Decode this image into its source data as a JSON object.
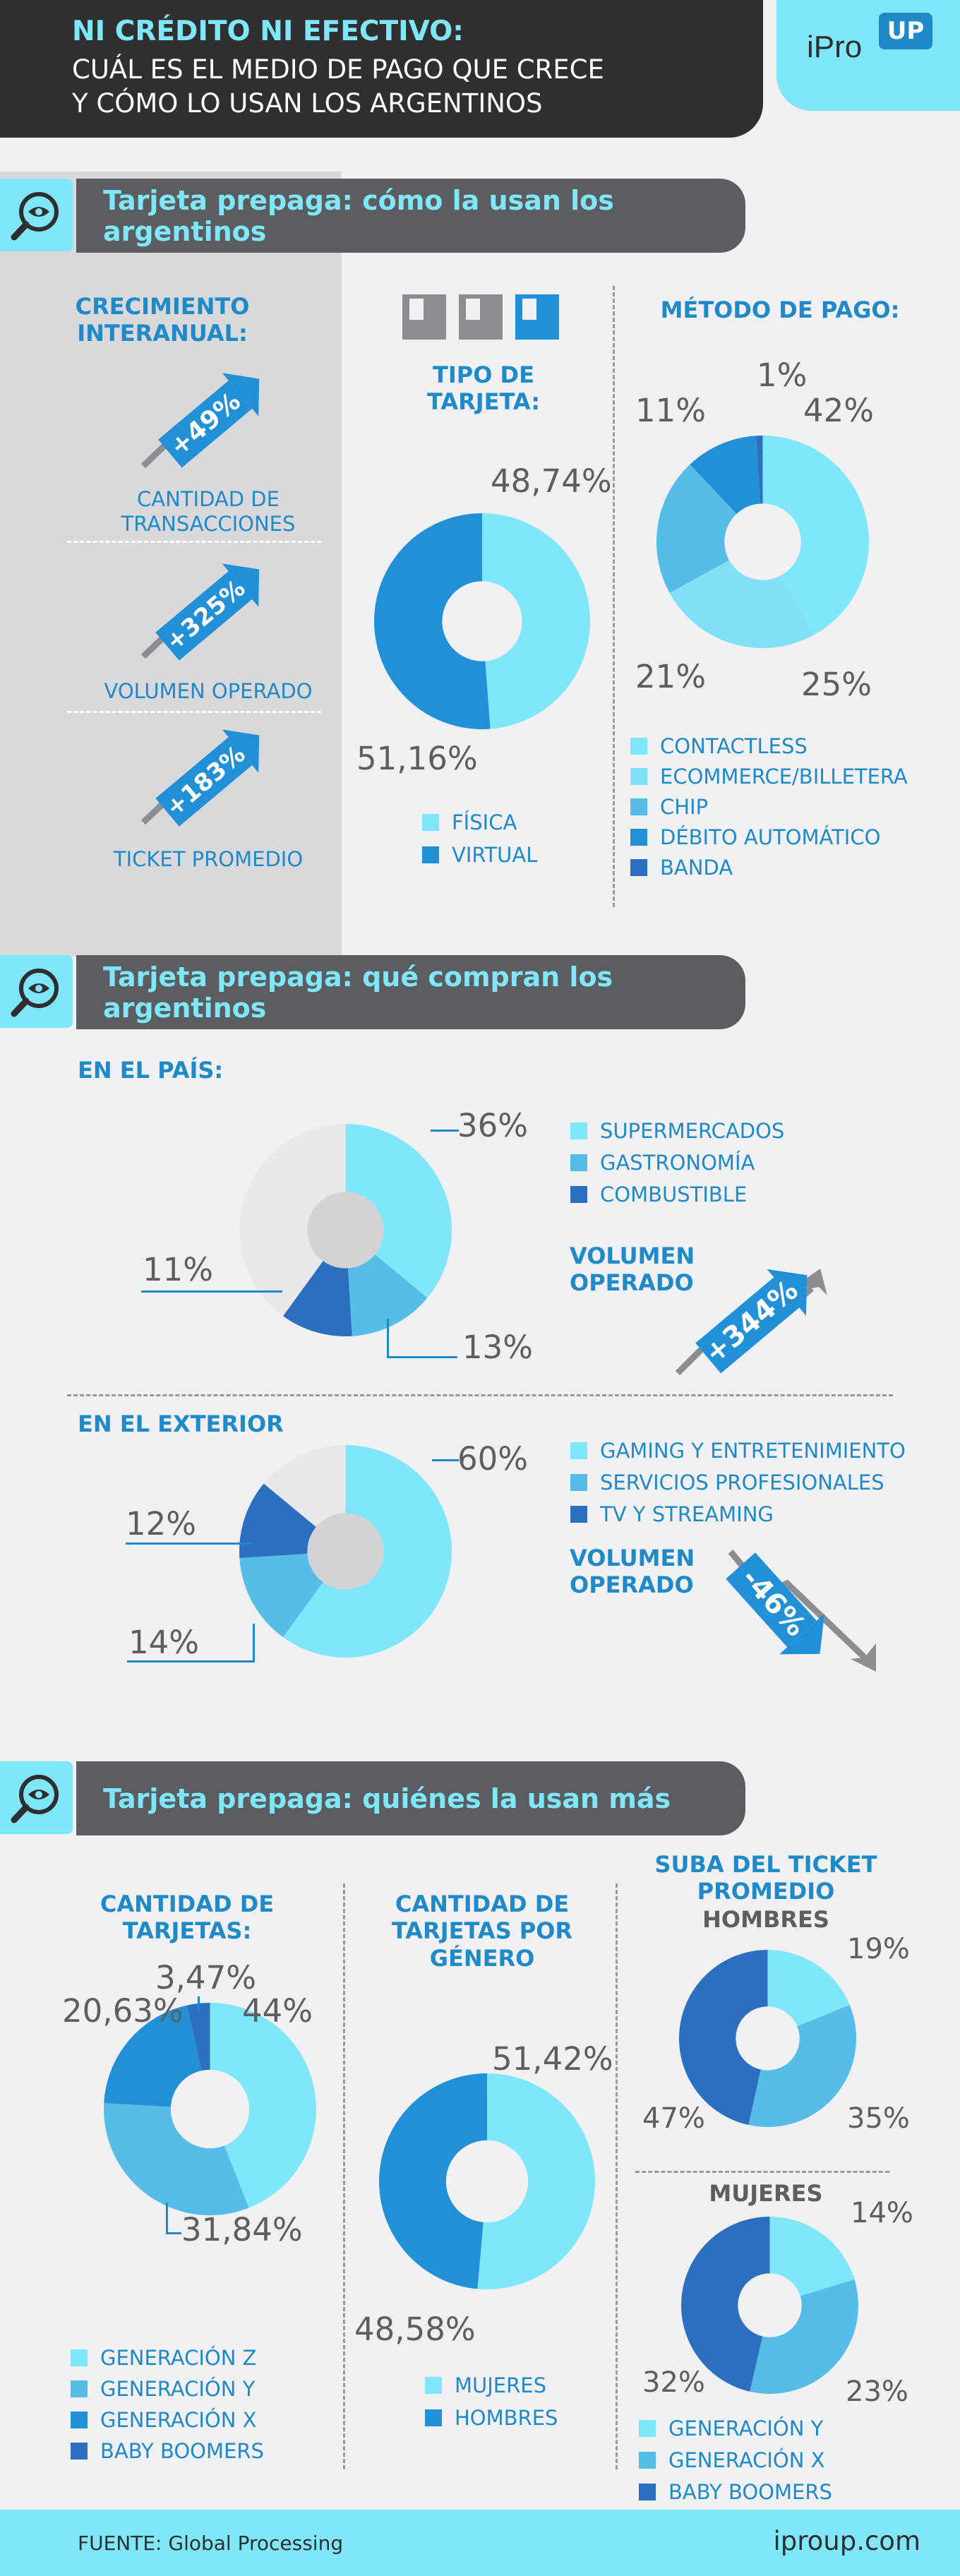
{
  "header": {
    "title_line1": "NI CRÉDITO NI EFECTIVO:",
    "title_line2": "CUÁL ES EL MEDIO DE PAGO QUE CRECE",
    "title_line3": "Y CÓMO LO USAN LOS ARGENTINOS",
    "logo_text": "iPro",
    "logo_badge": "UP"
  },
  "colors": {
    "cyan": "#7fe7f9",
    "light_blue": "#55bde8",
    "blue": "#2290d6",
    "dark_blue": "#2c6fbf",
    "dark_gray": "#2f2f30"
  },
  "sections": [
    {
      "title": "Tarjeta prepaga: cómo la usan los argentinos"
    },
    {
      "title": "Tarjeta prepaga: qué compran los argentinos"
    },
    {
      "title": "Tarjeta prepaga: quiénes la usan más"
    }
  ],
  "growth": {
    "heading": "CRECIMIENTO INTERANUAL:",
    "items": [
      {
        "value": "+49%",
        "label": "CANTIDAD DE TRANSACCIONES"
      },
      {
        "value": "+325%",
        "label": "VOLUMEN OPERADO"
      },
      {
        "value": "+183%",
        "label": "TICKET PROMEDIO"
      }
    ]
  },
  "texts": {
    "en_pais": "EN EL PAÍS:",
    "en_exterior": "EN EL EXTERIOR",
    "volumen_operado": "VOLUMEN OPERADO",
    "volumen_pais": "+344%",
    "volumen_exterior": "-46%",
    "suba_ticket": "SUBA DEL TICKET PROMEDIO",
    "hombres": "HOMBRES",
    "mujeres": "MUJERES"
  },
  "chart_data": [
    {
      "type": "pie",
      "title": "TIPO DE TARJETA:",
      "labels": [
        "FÍSICA",
        "VIRTUAL"
      ],
      "values": [
        48.74,
        51.16
      ],
      "value_labels": [
        "48,74%",
        "51,16%"
      ],
      "colors": [
        "#7fe7f9",
        "#2290d6"
      ]
    },
    {
      "type": "pie",
      "title": "MÉTODO DE PAGO:",
      "labels": [
        "CONTACTLESS",
        "ECOMMERCE/BILLETERA",
        "CHIP",
        "DÉBITO AUTOMÁTICO",
        "BANDA"
      ],
      "values": [
        42,
        25,
        21,
        11,
        1
      ],
      "value_labels": [
        "42%",
        "25%",
        "21%",
        "11%",
        "1%"
      ],
      "colors": [
        "#7fe7f9",
        "#80e1f6",
        "#55bde8",
        "#2290d6",
        "#2c6fbf"
      ]
    },
    {
      "type": "pie",
      "title": "EN EL PAÍS:",
      "labels": [
        "SUPERMERCADOS",
        "GASTRONOMÍA",
        "COMBUSTIBLE"
      ],
      "values": [
        36,
        13,
        11
      ],
      "value_labels": [
        "36%",
        "13%",
        "11%"
      ],
      "colors": [
        "#7fe7f9",
        "#55bde8",
        "#2c6fbf"
      ]
    },
    {
      "type": "pie",
      "title": "EN EL EXTERIOR",
      "labels": [
        "GAMING Y ENTRETENIMIENTO",
        "SERVICIOS PROFESIONALES",
        "TV Y STREAMING"
      ],
      "values": [
        60,
        14,
        12
      ],
      "value_labels": [
        "60%",
        "14%",
        "12%"
      ],
      "colors": [
        "#7fe7f9",
        "#55bde8",
        "#2c6fbf"
      ]
    },
    {
      "type": "pie",
      "title": "CANTIDAD DE TARJETAS:",
      "labels": [
        "GENERACIÓN Z",
        "GENERACIÓN Y",
        "GENERACIÓN X",
        "BABY BOOMERS"
      ],
      "values": [
        44,
        31.84,
        20.63,
        3.47
      ],
      "value_labels": [
        "44%",
        "31,84%",
        "20,63%",
        "3,47%"
      ],
      "colors": [
        "#7fe7f9",
        "#55bde8",
        "#2290d6",
        "#2c6fbf"
      ]
    },
    {
      "type": "pie",
      "title": "CANTIDAD DE TARJETAS POR GÉNERO",
      "labels": [
        "MUJERES",
        "HOMBRES"
      ],
      "values": [
        51.42,
        48.58
      ],
      "value_labels": [
        "51,42%",
        "48,58%"
      ],
      "colors": [
        "#7fe7f9",
        "#2290d6"
      ]
    },
    {
      "type": "pie",
      "title": "HOMBRES",
      "labels": [
        "GENERACIÓN Y",
        "GENERACIÓN X",
        "BABY BOOMERS"
      ],
      "values": [
        19,
        35,
        47
      ],
      "value_labels": [
        "19%",
        "35%",
        "47%"
      ],
      "colors": [
        "#7fe7f9",
        "#55bde8",
        "#2c6fbf"
      ]
    },
    {
      "type": "pie",
      "title": "MUJERES",
      "labels": [
        "GENERACIÓN Y",
        "GENERACIÓN X",
        "BABY BOOMERS"
      ],
      "values": [
        14,
        23,
        32
      ],
      "value_labels": [
        "14%",
        "23%",
        "32%"
      ],
      "colors": [
        "#7fe7f9",
        "#55bde8",
        "#2c6fbf"
      ]
    }
  ],
  "footer": {
    "source": "FUENTE: Global Processing",
    "site": "iproup.com"
  }
}
